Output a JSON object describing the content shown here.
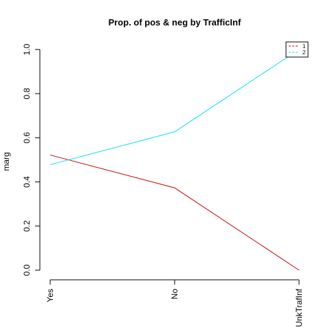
{
  "chart_data": {
    "type": "line",
    "title": "Prop. of pos & neg by TrafficInf",
    "xlabel": "",
    "ylabel": "marg",
    "categories": [
      "Yes",
      "No",
      "UnkTrafInf"
    ],
    "ylim": [
      0,
      1
    ],
    "yticks": [
      0.0,
      0.2,
      0.4,
      0.6,
      0.8,
      1.0
    ],
    "ytick_labels": [
      "0.0",
      "0.2",
      "0.4",
      "0.6",
      "0.8",
      "1.0"
    ],
    "grid": false,
    "legend_position": "top-right",
    "series": [
      {
        "name": "1",
        "values": [
          0.522,
          0.373,
          0.0
        ],
        "color": "#cc0000",
        "dash": "dashed"
      },
      {
        "name": "2",
        "values": [
          0.478,
          0.627,
          1.0
        ],
        "color": "#00e5ee",
        "dash": "dashed"
      }
    ]
  }
}
